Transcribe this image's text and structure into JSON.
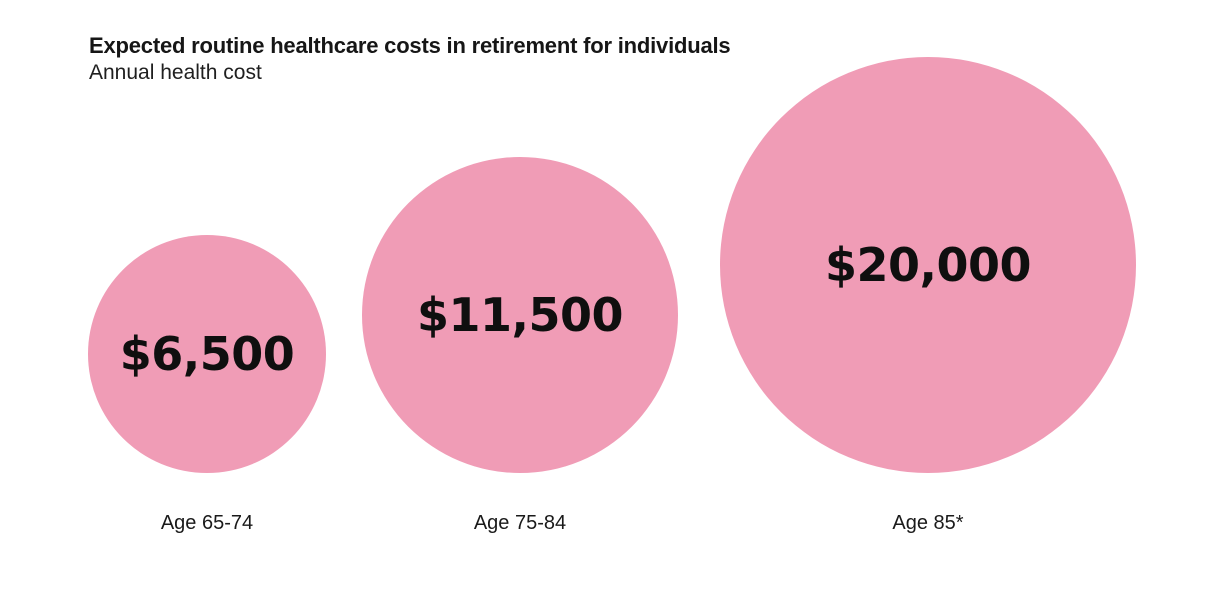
{
  "chart_data": {
    "type": "bubble",
    "title": "Expected routine healthcare costs in retirement for individuals",
    "subtitle": "Annual health cost",
    "sizing": "circle area proportional to value",
    "legend": "none",
    "axes": "none",
    "bubble_color": "#F09CB6",
    "value_text_color": "#0f0f0f",
    "category_text_color": "#1a1a1a",
    "background_color": "#ffffff",
    "points": [
      {
        "category": "Age 65-74",
        "value": 6500,
        "value_label": "$6,500"
      },
      {
        "category": "Age 75-84",
        "value": 11500,
        "value_label": "$11,500"
      },
      {
        "category": "Age 85*",
        "value": 20000,
        "value_label": "$20,000"
      }
    ]
  }
}
